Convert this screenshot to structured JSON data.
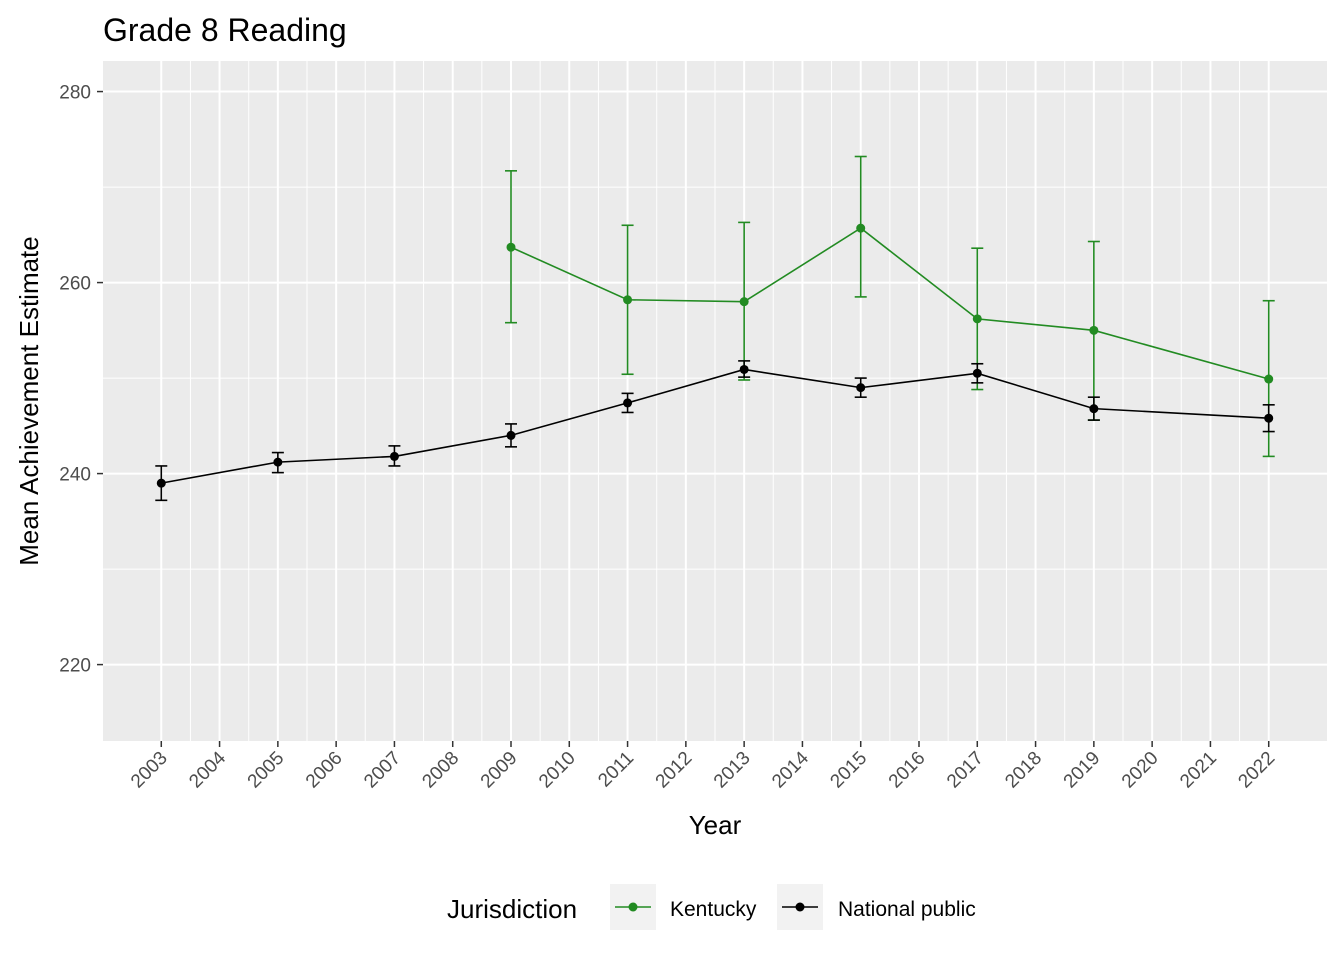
{
  "chart_data": {
    "type": "line",
    "title": "Grade 8 Reading",
    "xlabel": "Year",
    "ylabel": "Mean Achievement Estimate",
    "x_ticks": [
      "2003",
      "2004",
      "2005",
      "2006",
      "2007",
      "2008",
      "2009",
      "2010",
      "2011",
      "2012",
      "2013",
      "2014",
      "2015",
      "2016",
      "2017",
      "2018",
      "2019",
      "2020",
      "2021",
      "2022"
    ],
    "y_ticks": [
      220,
      240,
      260,
      280
    ],
    "xlim": [
      2002,
      2023
    ],
    "ylim": [
      212,
      283.2
    ],
    "grid": true,
    "legend": {
      "title": "Jurisdiction",
      "position": "bottom"
    },
    "series": [
      {
        "name": "Kentucky",
        "color": "#228B22",
        "points": [
          {
            "x": 2009,
            "y": 263.7,
            "lower": 255.8,
            "upper": 271.7
          },
          {
            "x": 2011,
            "y": 258.2,
            "lower": 250.4,
            "upper": 266.0
          },
          {
            "x": 2013,
            "y": 258.0,
            "lower": 249.8,
            "upper": 266.3
          },
          {
            "x": 2015,
            "y": 265.7,
            "lower": 258.5,
            "upper": 273.2
          },
          {
            "x": 2017,
            "y": 256.2,
            "lower": 248.8,
            "upper": 263.6
          },
          {
            "x": 2019,
            "y": 255.0,
            "lower": 245.6,
            "upper": 264.3
          },
          {
            "x": 2022,
            "y": 249.9,
            "lower": 241.8,
            "upper": 258.1
          }
        ]
      },
      {
        "name": "National public",
        "color": "#000000",
        "points": [
          {
            "x": 2003,
            "y": 239.0,
            "lower": 237.2,
            "upper": 240.8
          },
          {
            "x": 2005,
            "y": 241.2,
            "lower": 240.1,
            "upper": 242.2
          },
          {
            "x": 2007,
            "y": 241.8,
            "lower": 240.8,
            "upper": 242.9
          },
          {
            "x": 2009,
            "y": 244.0,
            "lower": 242.8,
            "upper": 245.2
          },
          {
            "x": 2011,
            "y": 247.4,
            "lower": 246.4,
            "upper": 248.4
          },
          {
            "x": 2013,
            "y": 250.9,
            "lower": 250.1,
            "upper": 251.8
          },
          {
            "x": 2015,
            "y": 249.0,
            "lower": 248.0,
            "upper": 250.0
          },
          {
            "x": 2017,
            "y": 250.5,
            "lower": 249.5,
            "upper": 251.5
          },
          {
            "x": 2019,
            "y": 246.8,
            "lower": 245.6,
            "upper": 248.0
          },
          {
            "x": 2022,
            "y": 245.8,
            "lower": 244.4,
            "upper": 247.2
          }
        ]
      }
    ]
  }
}
